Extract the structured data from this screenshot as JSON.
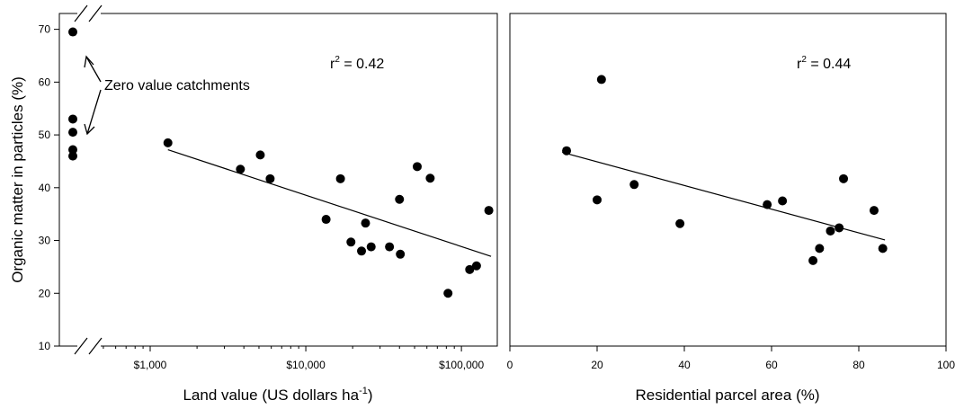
{
  "chart_data": [
    {
      "type": "scatter",
      "x_scale": "log",
      "xlabel": "Land value (US dollars ha",
      "xlabel_sup": "-1",
      "xlabel_end": ")",
      "ylabel": "Organic matter in particles (%)",
      "xlim": [
        450,
        170000
      ],
      "ylim": [
        10,
        73
      ],
      "x_ticks": [
        {
          "value": 1000,
          "label": "$1,000"
        },
        {
          "value": 10000,
          "label": "$10,000"
        },
        {
          "value": 100000,
          "label": "$100,000"
        }
      ],
      "y_ticks": [
        10,
        20,
        30,
        40,
        50,
        60,
        70
      ],
      "axis_break": true,
      "grid": false,
      "annotation": {
        "r_prefix": "r",
        "r_sup": "2",
        "r_value": " = 0.42"
      },
      "zero_value_label": "Zero value catchments",
      "zero_value_points": [
        69.5,
        53.0,
        50.5,
        47.2,
        46.0
      ],
      "points": [
        {
          "x": 1300,
          "y": 48.5
        },
        {
          "x": 3800,
          "y": 43.5
        },
        {
          "x": 5100,
          "y": 46.2
        },
        {
          "x": 5900,
          "y": 41.7
        },
        {
          "x": 13500,
          "y": 34.0
        },
        {
          "x": 16700,
          "y": 41.7
        },
        {
          "x": 19500,
          "y": 29.7
        },
        {
          "x": 22800,
          "y": 28.0
        },
        {
          "x": 24200,
          "y": 33.3
        },
        {
          "x": 26300,
          "y": 28.8
        },
        {
          "x": 34500,
          "y": 28.8
        },
        {
          "x": 40000,
          "y": 37.8
        },
        {
          "x": 40500,
          "y": 27.4
        },
        {
          "x": 52000,
          "y": 44.0
        },
        {
          "x": 63000,
          "y": 41.8
        },
        {
          "x": 82000,
          "y": 20.0
        },
        {
          "x": 113000,
          "y": 24.5
        },
        {
          "x": 125000,
          "y": 25.2
        },
        {
          "x": 150000,
          "y": 35.7
        }
      ],
      "fit_line": {
        "x": [
          1300,
          155000
        ],
        "y": [
          47.2,
          27.0
        ]
      }
    },
    {
      "type": "scatter",
      "x_scale": "linear",
      "xlabel": "Residential parcel area (%)",
      "xlim": [
        0,
        100
      ],
      "ylim": [
        10,
        73
      ],
      "x_ticks": [
        0,
        20,
        40,
        60,
        80,
        100
      ],
      "grid": false,
      "annotation": {
        "r_prefix": "r",
        "r_sup": "2",
        "r_value": " = 0.44"
      },
      "points": [
        {
          "x": 13,
          "y": 47.0
        },
        {
          "x": 20,
          "y": 37.7
        },
        {
          "x": 21,
          "y": 60.5
        },
        {
          "x": 28.5,
          "y": 40.6
        },
        {
          "x": 39,
          "y": 33.2
        },
        {
          "x": 59,
          "y": 36.8
        },
        {
          "x": 62.5,
          "y": 37.5
        },
        {
          "x": 69.5,
          "y": 26.2
        },
        {
          "x": 71,
          "y": 28.5
        },
        {
          "x": 73.5,
          "y": 31.8
        },
        {
          "x": 75.5,
          "y": 32.4
        },
        {
          "x": 76.5,
          "y": 41.7
        },
        {
          "x": 83.5,
          "y": 35.7
        },
        {
          "x": 85.5,
          "y": 28.5
        }
      ],
      "fit_line": {
        "x": [
          12,
          86
        ],
        "y": [
          46.7,
          30.1
        ]
      }
    }
  ]
}
